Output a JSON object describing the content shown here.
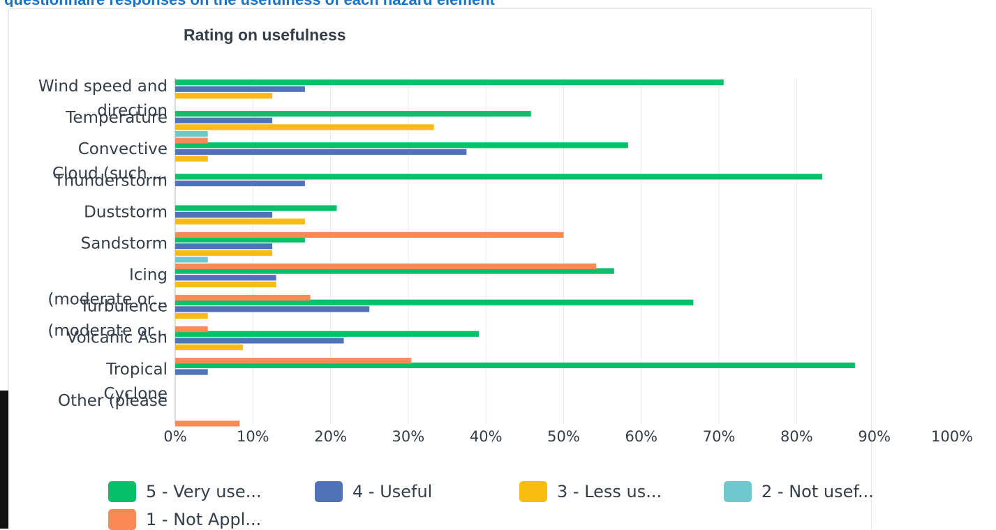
{
  "header_fragment": "questionnaire responses on the usefulness of each hazard element",
  "chart_data": {
    "type": "bar",
    "orientation": "horizontal",
    "title": "Rating on usefulness",
    "categories": [
      [
        "Wind speed and",
        "direction"
      ],
      [
        "Temperature"
      ],
      [
        "Convective",
        "Cloud (such ..."
      ],
      [
        "Thunderstorm"
      ],
      [
        "Duststorm"
      ],
      [
        "Sandstorm"
      ],
      [
        "Icing",
        "(moderate or..."
      ],
      [
        "Turbulence",
        "(moderate or..."
      ],
      [
        "Volcanic Ash"
      ],
      [
        "Tropical",
        "Cyclone"
      ],
      [
        "Other (please"
      ]
    ],
    "xlim": [
      0,
      100
    ],
    "ticks": [
      "0%",
      "10%",
      "20%",
      "30%",
      "40%",
      "50%",
      "60%",
      "70%",
      "80%",
      "90%",
      "100%"
    ],
    "grid": true,
    "legend_position": "bottom",
    "series": [
      {
        "name": "5 - Very use...",
        "color": "#08c06a",
        "values": [
          70.6,
          45.8,
          58.3,
          83.3,
          20.8,
          16.7,
          56.5,
          66.7,
          39.1,
          87.5,
          0
        ]
      },
      {
        "name": "4 - Useful",
        "color": "#4f72b8",
        "values": [
          16.7,
          12.5,
          37.5,
          16.7,
          12.5,
          12.5,
          13.0,
          25.0,
          21.7,
          4.2,
          0
        ]
      },
      {
        "name": "3 - Less us...",
        "color": "#f8bb0f",
        "values": [
          12.5,
          33.3,
          4.2,
          0,
          16.7,
          12.5,
          13.0,
          4.2,
          8.7,
          0,
          0
        ]
      },
      {
        "name": "2 - Not usef...",
        "color": "#6fc8cd",
        "values": [
          0,
          4.2,
          0,
          0,
          0,
          4.2,
          0,
          0,
          0,
          0,
          0
        ]
      },
      {
        "name": "1 - Not Appl...",
        "color": "#fb8a56",
        "values": [
          0,
          4.2,
          0,
          0,
          50.0,
          54.2,
          17.4,
          4.2,
          30.4,
          0,
          8.3
        ]
      }
    ]
  }
}
